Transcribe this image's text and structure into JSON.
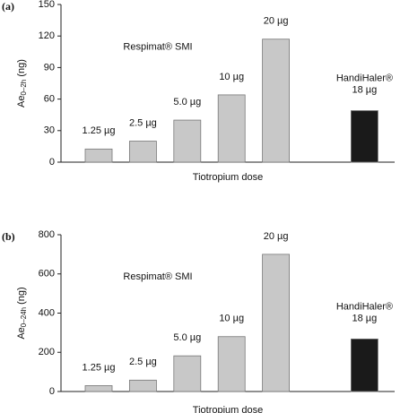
{
  "chart_data": [
    {
      "type": "bar",
      "panel": "(a)",
      "categories": [
        "1.25 µg",
        "2.5 µg",
        "5.0 µg",
        "10 µg",
        "20 µg",
        null,
        "HandiHaler® 18 µg"
      ],
      "values": [
        12.5,
        20,
        40,
        64,
        117,
        null,
        49
      ],
      "colors": [
        "#c8c8c8",
        "#c8c8c8",
        "#c8c8c8",
        "#c8c8c8",
        "#c8c8c8",
        null,
        "#1a1a1a"
      ],
      "ylim": [
        0,
        150
      ],
      "yticks": [
        0,
        30,
        60,
        90,
        120,
        150
      ],
      "ylabel": "Ae0–2h (ng)",
      "xlabel": "Tiotropium dose",
      "annotation": "Respimat® SMI"
    },
    {
      "type": "bar",
      "panel": "(b)",
      "categories": [
        "1.25 µg",
        "2.5 µg",
        "5.0 µg",
        "10 µg",
        "20 µg",
        null,
        "HandiHaler® 18 µg"
      ],
      "values": [
        30,
        58,
        182,
        280,
        700,
        null,
        268
      ],
      "colors": [
        "#c8c8c8",
        "#c8c8c8",
        "#c8c8c8",
        "#c8c8c8",
        "#c8c8c8",
        null,
        "#1a1a1a"
      ],
      "ylim": [
        0,
        800
      ],
      "yticks": [
        0,
        200,
        400,
        600,
        800
      ],
      "ylabel": "Ae0–24h (ng)",
      "xlabel": "Tiotropium dose",
      "annotation": "Respimat® SMI"
    }
  ]
}
